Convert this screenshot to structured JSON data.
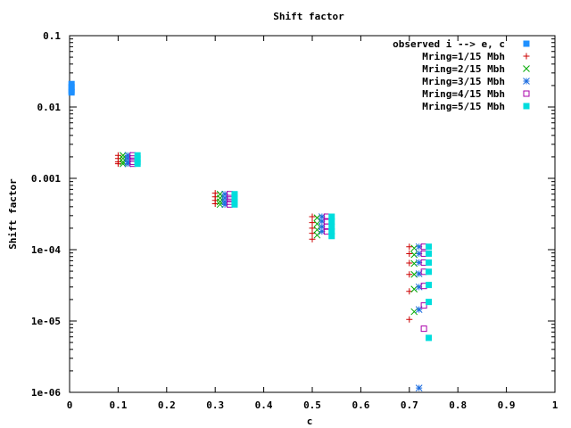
{
  "chart_data": {
    "type": "scatter",
    "title": "Shift factor",
    "xlabel": "c",
    "ylabel": "Shift factor",
    "xlim": [
      0,
      1
    ],
    "ylim": [
      1e-06,
      0.1
    ],
    "y_scale": "log",
    "grid": false,
    "legend_position": "top-right",
    "x_ticks": [
      "0",
      "0.1",
      "0.2",
      "0.3",
      "0.4",
      "0.5",
      "0.6",
      "0.7",
      "0.8",
      "0.9",
      "1"
    ],
    "x_tick_values": [
      0,
      0.1,
      0.2,
      0.3,
      0.4,
      0.5,
      0.6,
      0.7,
      0.8,
      0.9,
      1
    ],
    "y_ticks": [
      "1e-06",
      "1e-05",
      "1e-04",
      "0.001",
      "0.01",
      "0.1"
    ],
    "y_tick_values": [
      1e-06,
      1e-05,
      0.0001,
      0.001,
      0.01,
      0.1
    ],
    "series": [
      {
        "name": "observed i --> e, c",
        "marker": "filled-square",
        "color": "#1e90ff",
        "points": [
          {
            "x": 0.004,
            "y": 0.021
          },
          {
            "x": 0.004,
            "y": 0.019
          },
          {
            "x": 0.004,
            "y": 0.017
          },
          {
            "x": 0.004,
            "y": 0.016
          }
        ]
      },
      {
        "name": "Mring=1/15 Mbh",
        "marker": "plus",
        "color": "#cc0000",
        "points": [
          {
            "x": 0.1,
            "y": 0.0021
          },
          {
            "x": 0.1,
            "y": 0.0019
          },
          {
            "x": 0.1,
            "y": 0.0017
          },
          {
            "x": 0.1,
            "y": 0.0016
          },
          {
            "x": 0.3,
            "y": 0.00062
          },
          {
            "x": 0.3,
            "y": 0.00055
          },
          {
            "x": 0.3,
            "y": 0.00049
          },
          {
            "x": 0.3,
            "y": 0.00044
          },
          {
            "x": 0.5,
            "y": 0.00029
          },
          {
            "x": 0.5,
            "y": 0.00024
          },
          {
            "x": 0.5,
            "y": 0.0002
          },
          {
            "x": 0.5,
            "y": 0.00017
          },
          {
            "x": 0.5,
            "y": 0.00014
          },
          {
            "x": 0.7,
            "y": 0.00011
          },
          {
            "x": 0.7,
            "y": 8.8e-05
          },
          {
            "x": 0.7,
            "y": 6.5e-05
          },
          {
            "x": 0.7,
            "y": 4.5e-05
          },
          {
            "x": 0.7,
            "y": 2.6e-05
          },
          {
            "x": 0.7,
            "y": 1.05e-05
          }
        ]
      },
      {
        "name": "Mring=2/15 Mbh",
        "marker": "cross",
        "color": "#00aa00",
        "points": [
          {
            "x": 0.11,
            "y": 0.0021
          },
          {
            "x": 0.11,
            "y": 0.0019
          },
          {
            "x": 0.11,
            "y": 0.0017
          },
          {
            "x": 0.11,
            "y": 0.0016
          },
          {
            "x": 0.31,
            "y": 0.0006
          },
          {
            "x": 0.31,
            "y": 0.00053
          },
          {
            "x": 0.31,
            "y": 0.00047
          },
          {
            "x": 0.31,
            "y": 0.00043
          },
          {
            "x": 0.51,
            "y": 0.00028
          },
          {
            "x": 0.51,
            "y": 0.00023
          },
          {
            "x": 0.51,
            "y": 0.00019
          },
          {
            "x": 0.51,
            "y": 0.00016
          },
          {
            "x": 0.71,
            "y": 0.000105
          },
          {
            "x": 0.71,
            "y": 8.5e-05
          },
          {
            "x": 0.71,
            "y": 6.4e-05
          },
          {
            "x": 0.71,
            "y": 4.5e-05
          },
          {
            "x": 0.71,
            "y": 2.8e-05
          },
          {
            "x": 0.71,
            "y": 1.35e-05
          }
        ]
      },
      {
        "name": "Mring=3/15 Mbh",
        "marker": "star",
        "color": "#1e6ee0",
        "points": [
          {
            "x": 0.12,
            "y": 0.0021
          },
          {
            "x": 0.12,
            "y": 0.0019
          },
          {
            "x": 0.12,
            "y": 0.0017
          },
          {
            "x": 0.12,
            "y": 0.0016
          },
          {
            "x": 0.32,
            "y": 0.0006
          },
          {
            "x": 0.32,
            "y": 0.00053
          },
          {
            "x": 0.32,
            "y": 0.00047
          },
          {
            "x": 0.32,
            "y": 0.00043
          },
          {
            "x": 0.52,
            "y": 0.00029
          },
          {
            "x": 0.52,
            "y": 0.00025
          },
          {
            "x": 0.52,
            "y": 0.00021
          },
          {
            "x": 0.52,
            "y": 0.00018
          },
          {
            "x": 0.72,
            "y": 0.00011
          },
          {
            "x": 0.72,
            "y": 8.8e-05
          },
          {
            "x": 0.72,
            "y": 6.6e-05
          },
          {
            "x": 0.72,
            "y": 4.6e-05
          },
          {
            "x": 0.72,
            "y": 3e-05
          },
          {
            "x": 0.72,
            "y": 1.45e-05
          },
          {
            "x": 0.72,
            "y": 1.15e-06
          }
        ]
      },
      {
        "name": "Mring=4/15 Mbh",
        "marker": "open-square",
        "color": "#aa00aa",
        "points": [
          {
            "x": 0.13,
            "y": 0.0021
          },
          {
            "x": 0.13,
            "y": 0.0019
          },
          {
            "x": 0.13,
            "y": 0.0017
          },
          {
            "x": 0.13,
            "y": 0.0016
          },
          {
            "x": 0.33,
            "y": 0.0006
          },
          {
            "x": 0.33,
            "y": 0.00053
          },
          {
            "x": 0.33,
            "y": 0.00047
          },
          {
            "x": 0.33,
            "y": 0.00043
          },
          {
            "x": 0.53,
            "y": 0.00029
          },
          {
            "x": 0.53,
            "y": 0.00025
          },
          {
            "x": 0.53,
            "y": 0.00021
          },
          {
            "x": 0.53,
            "y": 0.00018
          },
          {
            "x": 0.73,
            "y": 0.00011
          },
          {
            "x": 0.73,
            "y": 8.8e-05
          },
          {
            "x": 0.73,
            "y": 6.6e-05
          },
          {
            "x": 0.73,
            "y": 4.9e-05
          },
          {
            "x": 0.73,
            "y": 3.1e-05
          },
          {
            "x": 0.73,
            "y": 1.65e-05
          },
          {
            "x": 0.73,
            "y": 7.8e-06
          }
        ]
      },
      {
        "name": "Mring=5/15 Mbh",
        "marker": "filled-square",
        "color": "#00dddd",
        "points": [
          {
            "x": 0.14,
            "y": 0.0021
          },
          {
            "x": 0.14,
            "y": 0.0019
          },
          {
            "x": 0.14,
            "y": 0.0017
          },
          {
            "x": 0.14,
            "y": 0.0016
          },
          {
            "x": 0.34,
            "y": 0.0006
          },
          {
            "x": 0.34,
            "y": 0.00053
          },
          {
            "x": 0.34,
            "y": 0.00047
          },
          {
            "x": 0.34,
            "y": 0.00043
          },
          {
            "x": 0.54,
            "y": 0.00029
          },
          {
            "x": 0.54,
            "y": 0.00025
          },
          {
            "x": 0.54,
            "y": 0.00021
          },
          {
            "x": 0.54,
            "y": 0.00018
          },
          {
            "x": 0.54,
            "y": 0.000155
          },
          {
            "x": 0.74,
            "y": 0.00011
          },
          {
            "x": 0.74,
            "y": 8.8e-05
          },
          {
            "x": 0.74,
            "y": 6.6e-05
          },
          {
            "x": 0.74,
            "y": 4.9e-05
          },
          {
            "x": 0.74,
            "y": 3.2e-05
          },
          {
            "x": 0.74,
            "y": 1.85e-05
          },
          {
            "x": 0.74,
            "y": 5.8e-06
          }
        ]
      }
    ]
  }
}
